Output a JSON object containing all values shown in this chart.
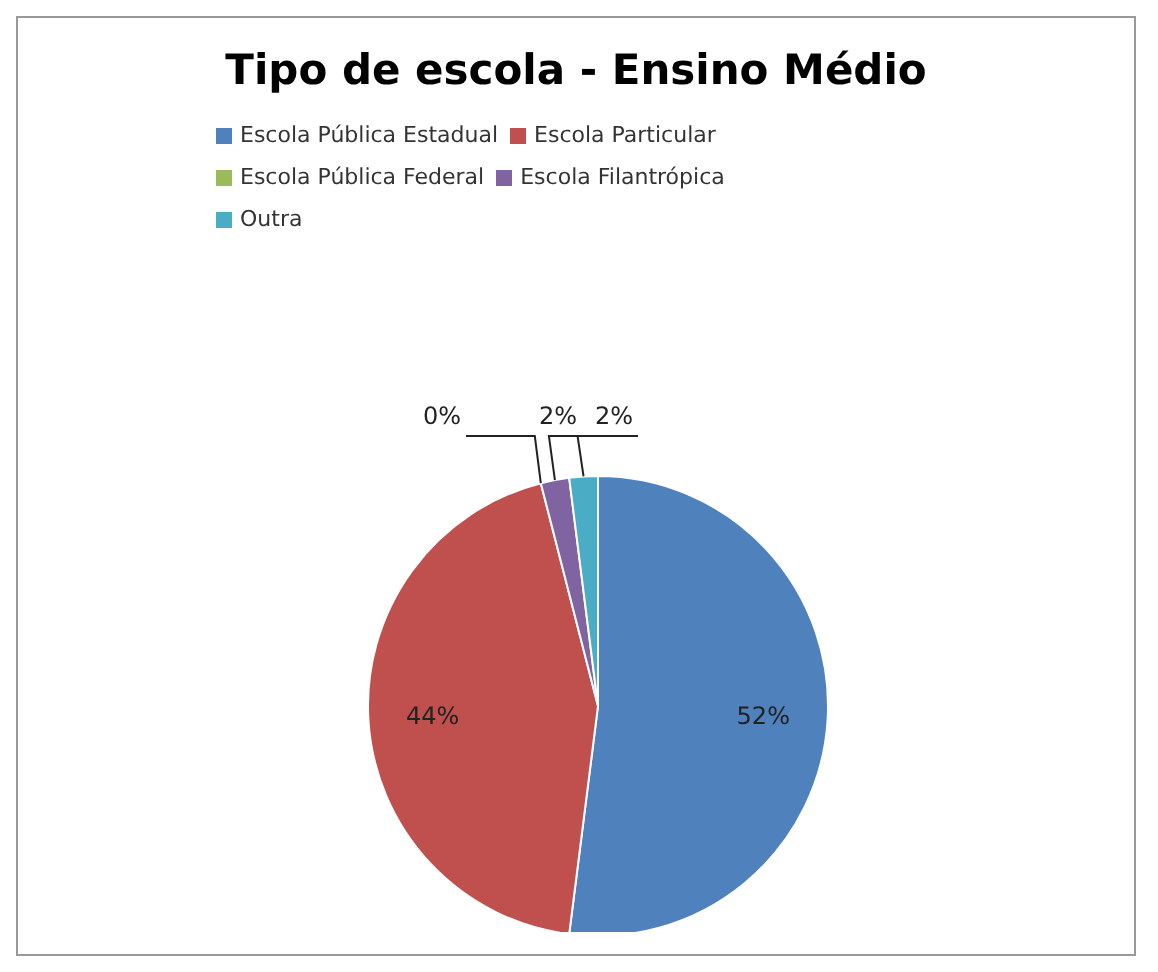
{
  "chart_data": {
    "type": "pie",
    "title": "Tipo de escola - Ensino Médio",
    "categories": [
      "Escola Pública Estadual",
      "Escola Particular",
      "Escola Pública Federal",
      "Escola Filantrópica",
      "Outra"
    ],
    "values": [
      52,
      44,
      0,
      2,
      2
    ],
    "colors": [
      "#4f81bd",
      "#c0504d",
      "#9bbb59",
      "#8064a2",
      "#4bacc6"
    ],
    "value_labels": [
      "52%",
      "44%",
      "0%",
      "2%",
      "2%"
    ],
    "legend": "top"
  }
}
